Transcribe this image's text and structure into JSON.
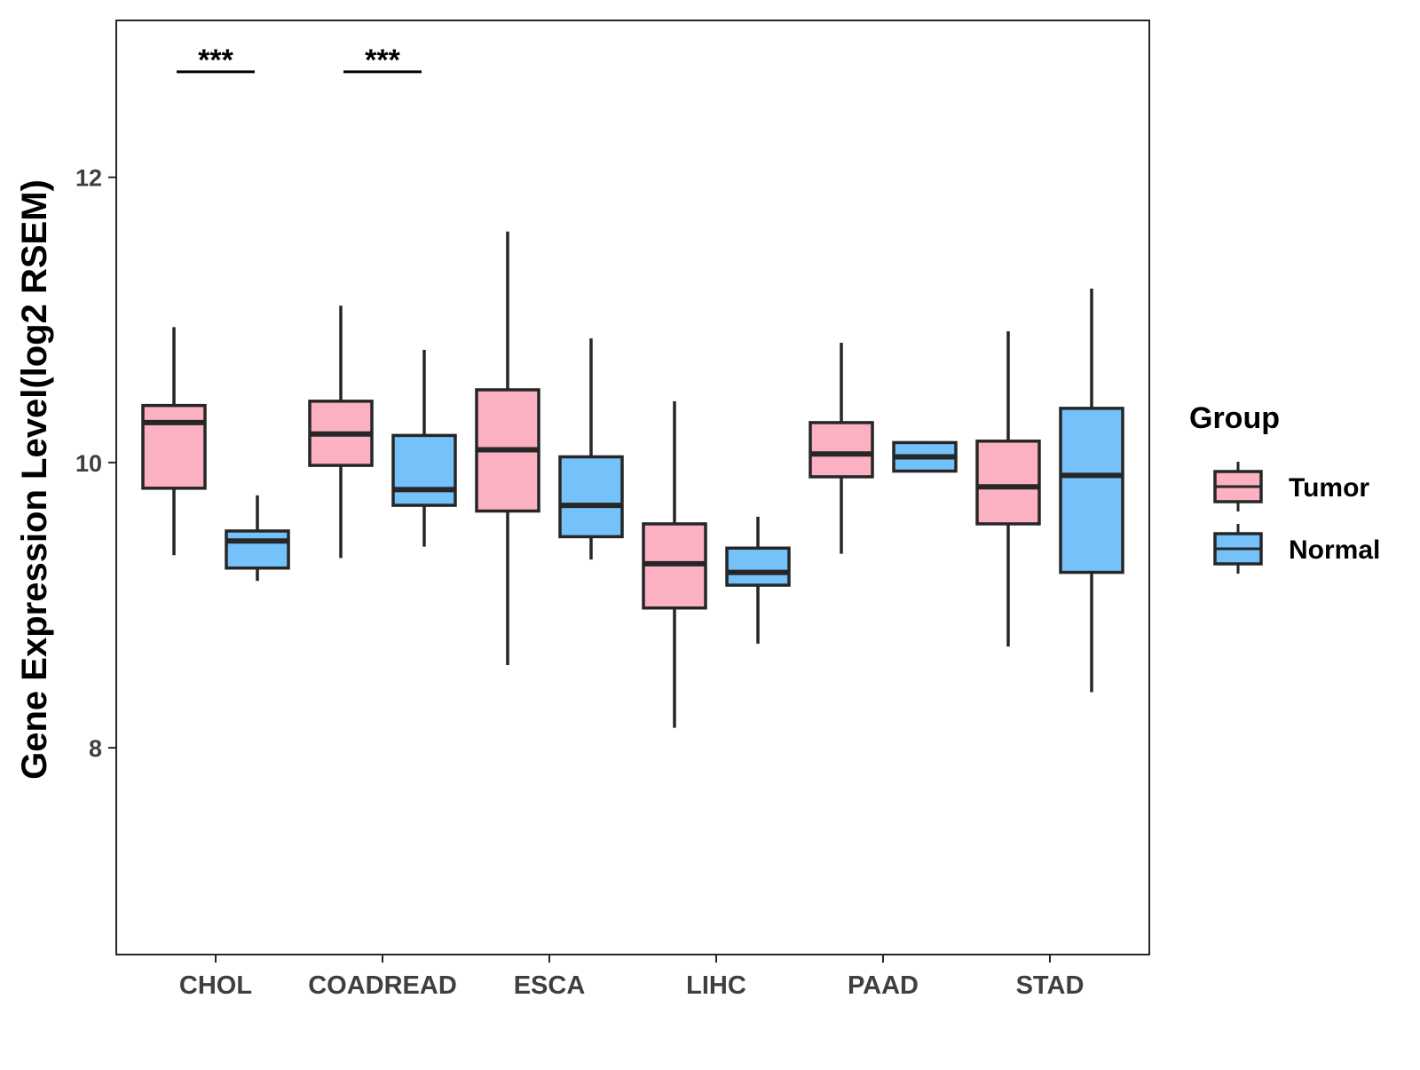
{
  "chart_data": {
    "type": "boxplot",
    "title": "",
    "xlabel": "",
    "ylabel": "Gene Expression Level(log2 RSEM)",
    "ylim": [
      6.55,
      13.1
    ],
    "yticks": [
      8,
      10,
      12
    ],
    "ytick_labels": [
      "8",
      "10",
      "12"
    ],
    "categories": [
      "CHOL",
      "COADREAD",
      "ESCA",
      "LIHC",
      "PAAD",
      "STAD"
    ],
    "grid": false,
    "legend": {
      "title": "Group",
      "position": "right",
      "entries": [
        "Tumor",
        "Normal"
      ]
    },
    "colors": {
      "Tumor": "#FBB1C1",
      "Normal": "#75C1F9",
      "outline": "#262626",
      "axis": "#262626",
      "text": "#000000",
      "tick_text": "#3f3f3f"
    },
    "series": [
      {
        "name": "Tumor",
        "boxes": [
          {
            "min": 9.35,
            "q1": 9.82,
            "median": 10.28,
            "q3": 10.4,
            "max": 10.95
          },
          {
            "min": 9.33,
            "q1": 9.98,
            "median": 10.2,
            "q3": 10.43,
            "max": 11.1
          },
          {
            "min": 8.58,
            "q1": 9.66,
            "median": 10.09,
            "q3": 10.51,
            "max": 11.62
          },
          {
            "min": 8.14,
            "q1": 8.98,
            "median": 9.29,
            "q3": 9.57,
            "max": 10.43
          },
          {
            "min": 9.36,
            "q1": 9.9,
            "median": 10.06,
            "q3": 10.28,
            "max": 10.84
          },
          {
            "min": 8.71,
            "q1": 9.57,
            "median": 9.83,
            "q3": 10.15,
            "max": 10.92
          }
        ]
      },
      {
        "name": "Normal",
        "boxes": [
          {
            "min": 9.17,
            "q1": 9.26,
            "median": 9.45,
            "q3": 9.52,
            "max": 9.77
          },
          {
            "min": 9.41,
            "q1": 9.7,
            "median": 9.81,
            "q3": 10.19,
            "max": 10.79
          },
          {
            "min": 9.32,
            "q1": 9.48,
            "median": 9.7,
            "q3": 10.04,
            "max": 10.87
          },
          {
            "min": 8.73,
            "q1": 9.14,
            "median": 9.23,
            "q3": 9.4,
            "max": 9.62
          },
          {
            "min": 9.94,
            "q1": 9.94,
            "median": 10.04,
            "q3": 10.14,
            "max": 10.15
          },
          {
            "min": 8.39,
            "q1": 9.23,
            "median": 9.91,
            "q3": 10.38,
            "max": 11.22
          }
        ]
      }
    ],
    "annotations": [
      {
        "category": "CHOL",
        "text": "***",
        "y": 12.74
      },
      {
        "category": "COADREAD",
        "text": "***",
        "y": 12.74
      }
    ]
  }
}
